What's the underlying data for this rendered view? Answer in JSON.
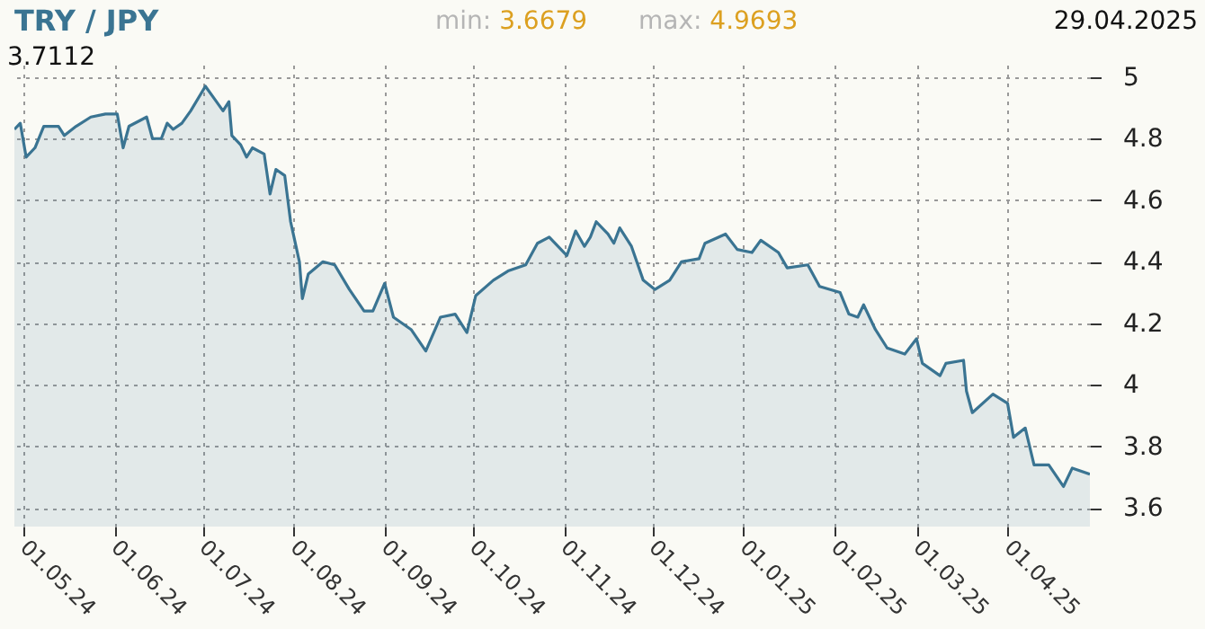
{
  "chart_data": {
    "type": "area",
    "title": "TRY / JPY",
    "annotations": [
      "3.7112",
      "min: 3.6679",
      "max: 4.9693",
      "29.04.2025"
    ],
    "x": [
      "2024-04-28",
      "2024-04-30",
      "2024-05-02",
      "2024-05-05",
      "2024-05-08",
      "2024-05-13",
      "2024-05-15",
      "2024-05-19",
      "2024-05-24",
      "2024-05-29",
      "2024-06-02",
      "2024-06-04",
      "2024-06-06",
      "2024-06-12",
      "2024-06-14",
      "2024-06-17",
      "2024-06-19",
      "2024-06-21",
      "2024-06-24",
      "2024-06-27",
      "2024-07-02",
      "2024-07-05",
      "2024-07-08",
      "2024-07-10",
      "2024-07-11",
      "2024-07-14",
      "2024-07-16",
      "2024-07-18",
      "2024-07-22",
      "2024-07-24",
      "2024-07-26",
      "2024-07-29",
      "2024-07-31",
      "2024-08-03",
      "2024-08-04",
      "2024-08-06",
      "2024-08-11",
      "2024-08-15",
      "2024-08-20",
      "2024-08-25",
      "2024-08-28",
      "2024-09-01",
      "2024-09-04",
      "2024-09-10",
      "2024-09-15",
      "2024-09-20",
      "2024-09-25",
      "2024-09-29",
      "2024-10-02",
      "2024-10-08",
      "2024-10-13",
      "2024-10-19",
      "2024-10-23",
      "2024-10-27",
      "2024-11-02",
      "2024-11-05",
      "2024-11-08",
      "2024-11-10",
      "2024-11-12",
      "2024-11-16",
      "2024-11-18",
      "2024-11-20",
      "2024-11-24",
      "2024-11-28",
      "2024-12-02",
      "2024-12-07",
      "2024-12-11",
      "2024-12-17",
      "2024-12-19",
      "2024-12-26",
      "2024-12-30",
      "2025-01-04",
      "2025-01-07",
      "2025-01-13",
      "2025-01-16",
      "2025-01-23",
      "2025-01-27",
      "2025-02-03",
      "2025-02-06",
      "2025-02-09",
      "2025-02-11",
      "2025-02-15",
      "2025-02-19",
      "2025-02-25",
      "2025-03-01",
      "2025-03-03",
      "2025-03-09",
      "2025-03-11",
      "2025-03-17",
      "2025-03-18",
      "2025-03-20",
      "2025-03-27",
      "2025-04-01",
      "2025-04-03",
      "2025-04-07",
      "2025-04-10",
      "2025-04-15",
      "2025-04-20",
      "2025-04-23",
      "2025-04-29"
    ],
    "series": [
      {
        "color": "#3a7492",
        "values": [
          4.83,
          4.85,
          4.74,
          4.77,
          4.84,
          4.84,
          4.81,
          4.84,
          4.87,
          4.88,
          4.88,
          4.77,
          4.84,
          4.87,
          4.8,
          4.8,
          4.85,
          4.83,
          4.85,
          4.89,
          4.97,
          4.93,
          4.89,
          4.92,
          4.81,
          4.78,
          4.74,
          4.77,
          4.75,
          4.62,
          4.7,
          4.68,
          4.53,
          4.4,
          4.28,
          4.36,
          4.4,
          4.39,
          4.31,
          4.24,
          4.24,
          4.33,
          4.22,
          4.18,
          4.11,
          4.22,
          4.23,
          4.17,
          4.29,
          4.34,
          4.37,
          4.39,
          4.46,
          4.48,
          4.42,
          4.5,
          4.45,
          4.48,
          4.53,
          4.49,
          4.46,
          4.51,
          4.45,
          4.34,
          4.31,
          4.34,
          4.4,
          4.41,
          4.46,
          4.49,
          4.44,
          4.43,
          4.47,
          4.43,
          4.38,
          4.39,
          4.32,
          4.3,
          4.23,
          4.22,
          4.26,
          4.18,
          4.12,
          4.1,
          4.15,
          4.07,
          4.03,
          4.07,
          4.08,
          3.98,
          3.91,
          3.97,
          3.94,
          3.83,
          3.86,
          3.74,
          3.74,
          3.67,
          3.73,
          3.71
        ]
      }
    ],
    "xlim": [
      "2024-04-28",
      "2025-04-29"
    ],
    "xticks": [
      {
        "value": "2024-05-01",
        "label": "01.05.24"
      },
      {
        "value": "2024-06-01",
        "label": "01.06.24"
      },
      {
        "value": "2024-07-01",
        "label": "01.07.24"
      },
      {
        "value": "2024-08-01",
        "label": "01.08.24"
      },
      {
        "value": "2024-09-01",
        "label": "01.09.24"
      },
      {
        "value": "2024-10-01",
        "label": "01.10.24"
      },
      {
        "value": "2024-11-01",
        "label": "01.11.24"
      },
      {
        "value": "2024-12-01",
        "label": "01.12.24"
      },
      {
        "value": "2025-01-01",
        "label": "01.01.25"
      },
      {
        "value": "2025-02-01",
        "label": "01.02.25"
      },
      {
        "value": "2025-03-01",
        "label": "01.03.25"
      },
      {
        "value": "2025-04-01",
        "label": "01.04.25"
      }
    ],
    "ylim": [
      3.54,
      5.04
    ],
    "yticks": [
      3.6,
      3.8,
      4,
      4.2,
      4.4,
      4.6,
      4.8,
      5
    ],
    "grid": true
  }
}
